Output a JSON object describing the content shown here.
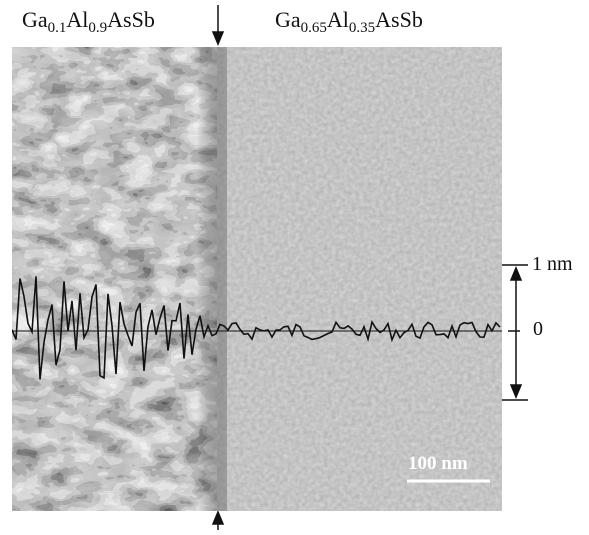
{
  "labels": {
    "left": {
      "base1": "Ga",
      "sub1": "0.1",
      "base2": "Al",
      "sub2": "0.9",
      "tail": "AsSb"
    },
    "right": {
      "base1": "Ga",
      "sub1": "0.65",
      "base2": "Al",
      "sub2": "0.35",
      "tail": "AsSb"
    }
  },
  "height_axis": {
    "top_label": "1 nm",
    "zero_label": "0"
  },
  "scale_bar": {
    "label": "100 nm"
  },
  "colors": {
    "left_region": "#6e6e6e",
    "right_region": "#8a8a8a",
    "profile_line": "#111111"
  }
}
